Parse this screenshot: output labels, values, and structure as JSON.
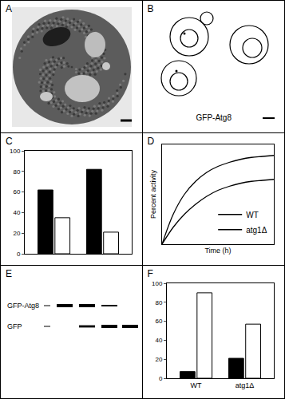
{
  "panel_labels": [
    "A",
    "B",
    "C",
    "D",
    "E",
    "F"
  ],
  "panel_b": {
    "label": "GFP-Atg8"
  },
  "panel_e": {
    "bands": [
      {
        "label": "GFP-Atg8",
        "intensity": [
          1,
          1,
          0.5,
          0
        ]
      },
      {
        "label": "GFP",
        "intensity": [
          0,
          0.7,
          1,
          1
        ]
      }
    ]
  },
  "chart_data": [
    {
      "type": "bar",
      "categories": [
        null,
        null
      ],
      "series": [
        {
          "color": "#000000",
          "values": [
            62,
            82
          ]
        },
        {
          "color": "#ffffff",
          "values": [
            35,
            21
          ]
        }
      ],
      "ylim": [
        0,
        100
      ],
      "yticks": [
        0,
        20,
        40,
        60,
        80,
        100
      ],
      "tick_labels": "y"
    },
    {
      "type": "line",
      "x": [
        0,
        1,
        2,
        3,
        4,
        5,
        6,
        7,
        8,
        9,
        10
      ],
      "series": [
        {
          "name": "WT",
          "color": "#000000",
          "values": [
            0,
            30,
            50,
            63,
            72,
            78,
            82,
            85,
            87,
            88,
            89
          ]
        },
        {
          "name": "atg1Δ",
          "color": "#000000",
          "values": [
            0,
            17,
            30,
            40,
            48,
            54,
            58,
            61,
            63,
            64,
            65
          ]
        }
      ],
      "x_label": "Time (h)",
      "y_label": "Percent activity",
      "xlim": [
        0,
        10
      ],
      "ylim": [
        0,
        100
      ],
      "tick_labels": false,
      "legend": "lower right"
    },
    {
      "type": "bar",
      "categories": [
        "WT",
        "atg1Δ"
      ],
      "series": [
        {
          "color": "#000000",
          "values": [
            7,
            21
          ]
        },
        {
          "color": "#ffffff",
          "values": [
            90,
            57
          ]
        }
      ],
      "ylim": [
        0,
        100
      ],
      "yticks": [
        0,
        20,
        40,
        60,
        80,
        100
      ]
    }
  ]
}
